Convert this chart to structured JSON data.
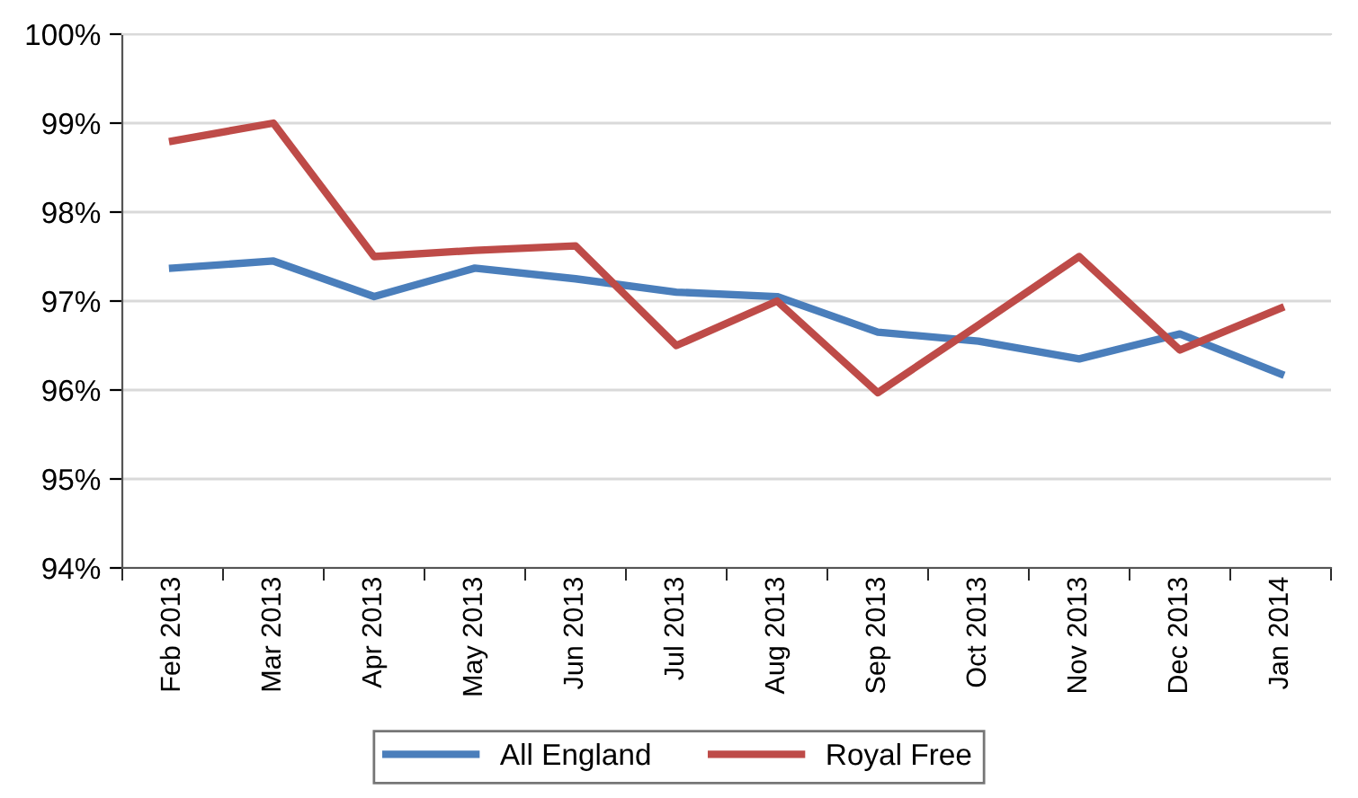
{
  "chart_data": {
    "type": "line",
    "categories": [
      "Feb 2013",
      "Mar 2013",
      "Apr 2013",
      "May 2013",
      "Jun 2013",
      "Jul 2013",
      "Aug 2013",
      "Sep 2013",
      "Oct 2013",
      "Nov 2013",
      "Dec 2013",
      "Jan 2014"
    ],
    "series": [
      {
        "name": "All England",
        "color": "#4a7ebb",
        "values": [
          97.37,
          97.45,
          97.05,
          97.37,
          97.25,
          97.1,
          97.05,
          96.65,
          96.55,
          96.35,
          96.63,
          96.18
        ]
      },
      {
        "name": "Royal Free",
        "color": "#be4b48",
        "values": [
          98.8,
          99.0,
          97.5,
          97.57,
          97.62,
          96.5,
          97.0,
          95.97,
          96.73,
          97.5,
          96.45,
          96.92
        ]
      }
    ],
    "ylim": [
      94,
      100
    ],
    "yticks": [
      {
        "value": 94,
        "label": "94%"
      },
      {
        "value": 95,
        "label": "95%"
      },
      {
        "value": 96,
        "label": "96%"
      },
      {
        "value": 97,
        "label": "97%"
      },
      {
        "value": 98,
        "label": "98%"
      },
      {
        "value": 99,
        "label": "99%"
      },
      {
        "value": 100,
        "label": "100%"
      }
    ],
    "grid": "y",
    "legend": "bottom",
    "marker": "none",
    "line_style": "solid"
  }
}
